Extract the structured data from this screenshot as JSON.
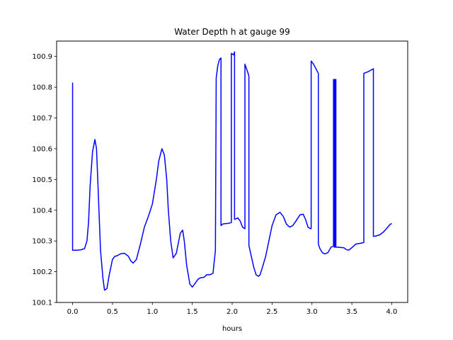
{
  "chart_data": {
    "type": "line",
    "title": "Water Depth h at gauge 99",
    "xlabel": "hours",
    "ylabel": "",
    "xlim": [
      -0.2,
      4.2
    ],
    "ylim": [
      100.1,
      100.95
    ],
    "xticks": [
      0.0,
      0.5,
      1.0,
      1.5,
      2.0,
      2.5,
      3.0,
      3.5,
      4.0
    ],
    "xtick_labels": [
      "0.0",
      "0.5",
      "1.0",
      "1.5",
      "2.0",
      "2.5",
      "3.0",
      "3.5",
      "4.0"
    ],
    "yticks": [
      100.1,
      100.2,
      100.3,
      100.4,
      100.5,
      100.6,
      100.7,
      100.8,
      100.9
    ],
    "ytick_labels": [
      "100.1",
      "100.2",
      "100.3",
      "100.4",
      "100.5",
      "100.6",
      "100.7",
      "100.8",
      "100.9"
    ],
    "grid": false,
    "series": [
      {
        "color": "#0000ff",
        "x": [
          0.0,
          0.0,
          0.05,
          0.1,
          0.15,
          0.18,
          0.2,
          0.22,
          0.25,
          0.28,
          0.3,
          0.32,
          0.35,
          0.38,
          0.4,
          0.43,
          0.46,
          0.5,
          0.53,
          0.56,
          0.6,
          0.65,
          0.7,
          0.73,
          0.76,
          0.8,
          0.85,
          0.9,
          0.95,
          1.0,
          1.05,
          1.08,
          1.12,
          1.15,
          1.18,
          1.2,
          1.23,
          1.26,
          1.3,
          1.35,
          1.38,
          1.4,
          1.43,
          1.47,
          1.5,
          1.53,
          1.57,
          1.6,
          1.65,
          1.68,
          1.72,
          1.76,
          1.79,
          1.8,
          1.82,
          1.84,
          1.86,
          1.86,
          1.88,
          1.9,
          1.95,
          1.99,
          1.99,
          2.02,
          2.03,
          2.03,
          2.07,
          2.1,
          2.13,
          2.16,
          2.16,
          2.18,
          2.2,
          2.21,
          2.21,
          2.24,
          2.27,
          2.3,
          2.33,
          2.35,
          2.38,
          2.42,
          2.46,
          2.5,
          2.55,
          2.6,
          2.64,
          2.68,
          2.72,
          2.76,
          2.8,
          2.85,
          2.89,
          2.92,
          2.95,
          2.98,
          2.99,
          2.99,
          3.02,
          3.05,
          3.08,
          3.08,
          3.1,
          3.13,
          3.16,
          3.2,
          3.24,
          3.27,
          3.27,
          3.28,
          3.28,
          3.29,
          3.29,
          3.3,
          3.3,
          3.35,
          3.4,
          3.43,
          3.46,
          3.5,
          3.55,
          3.6,
          3.65,
          3.65,
          3.7,
          3.75,
          3.77,
          3.77,
          3.8,
          3.85,
          3.9,
          3.95,
          3.98,
          4.0
        ],
        "y": [
          100.815,
          100.27,
          100.27,
          100.271,
          100.275,
          100.3,
          100.36,
          100.48,
          100.59,
          100.63,
          100.6,
          100.47,
          100.27,
          100.18,
          100.14,
          100.145,
          100.19,
          100.24,
          100.25,
          100.252,
          100.258,
          100.26,
          100.25,
          100.235,
          100.228,
          100.24,
          100.29,
          100.345,
          100.38,
          100.42,
          100.5,
          100.56,
          100.6,
          100.58,
          100.5,
          100.4,
          100.3,
          100.245,
          100.26,
          100.325,
          100.335,
          100.3,
          100.22,
          100.16,
          100.15,
          100.16,
          100.175,
          100.18,
          100.182,
          100.19,
          100.19,
          100.195,
          100.27,
          100.83,
          100.87,
          100.89,
          100.895,
          100.35,
          100.355,
          100.356,
          100.357,
          100.36,
          100.91,
          100.905,
          100.915,
          100.37,
          100.375,
          100.365,
          100.345,
          100.34,
          100.875,
          100.86,
          100.845,
          100.835,
          100.285,
          100.25,
          100.215,
          100.19,
          100.185,
          100.19,
          100.215,
          100.25,
          100.3,
          100.35,
          100.385,
          100.393,
          100.38,
          100.355,
          100.345,
          100.35,
          100.365,
          100.385,
          100.387,
          100.37,
          100.345,
          100.34,
          100.34,
          100.885,
          100.875,
          100.86,
          100.845,
          100.29,
          100.275,
          100.262,
          100.258,
          100.262,
          100.28,
          100.283,
          100.825,
          100.825,
          100.28,
          100.28,
          100.825,
          100.825,
          100.28,
          100.279,
          100.278,
          100.272,
          100.27,
          100.278,
          100.29,
          100.292,
          100.295,
          100.845,
          100.85,
          100.857,
          100.86,
          100.315,
          100.316,
          100.32,
          100.33,
          100.345,
          100.354,
          100.357
        ]
      }
    ]
  }
}
